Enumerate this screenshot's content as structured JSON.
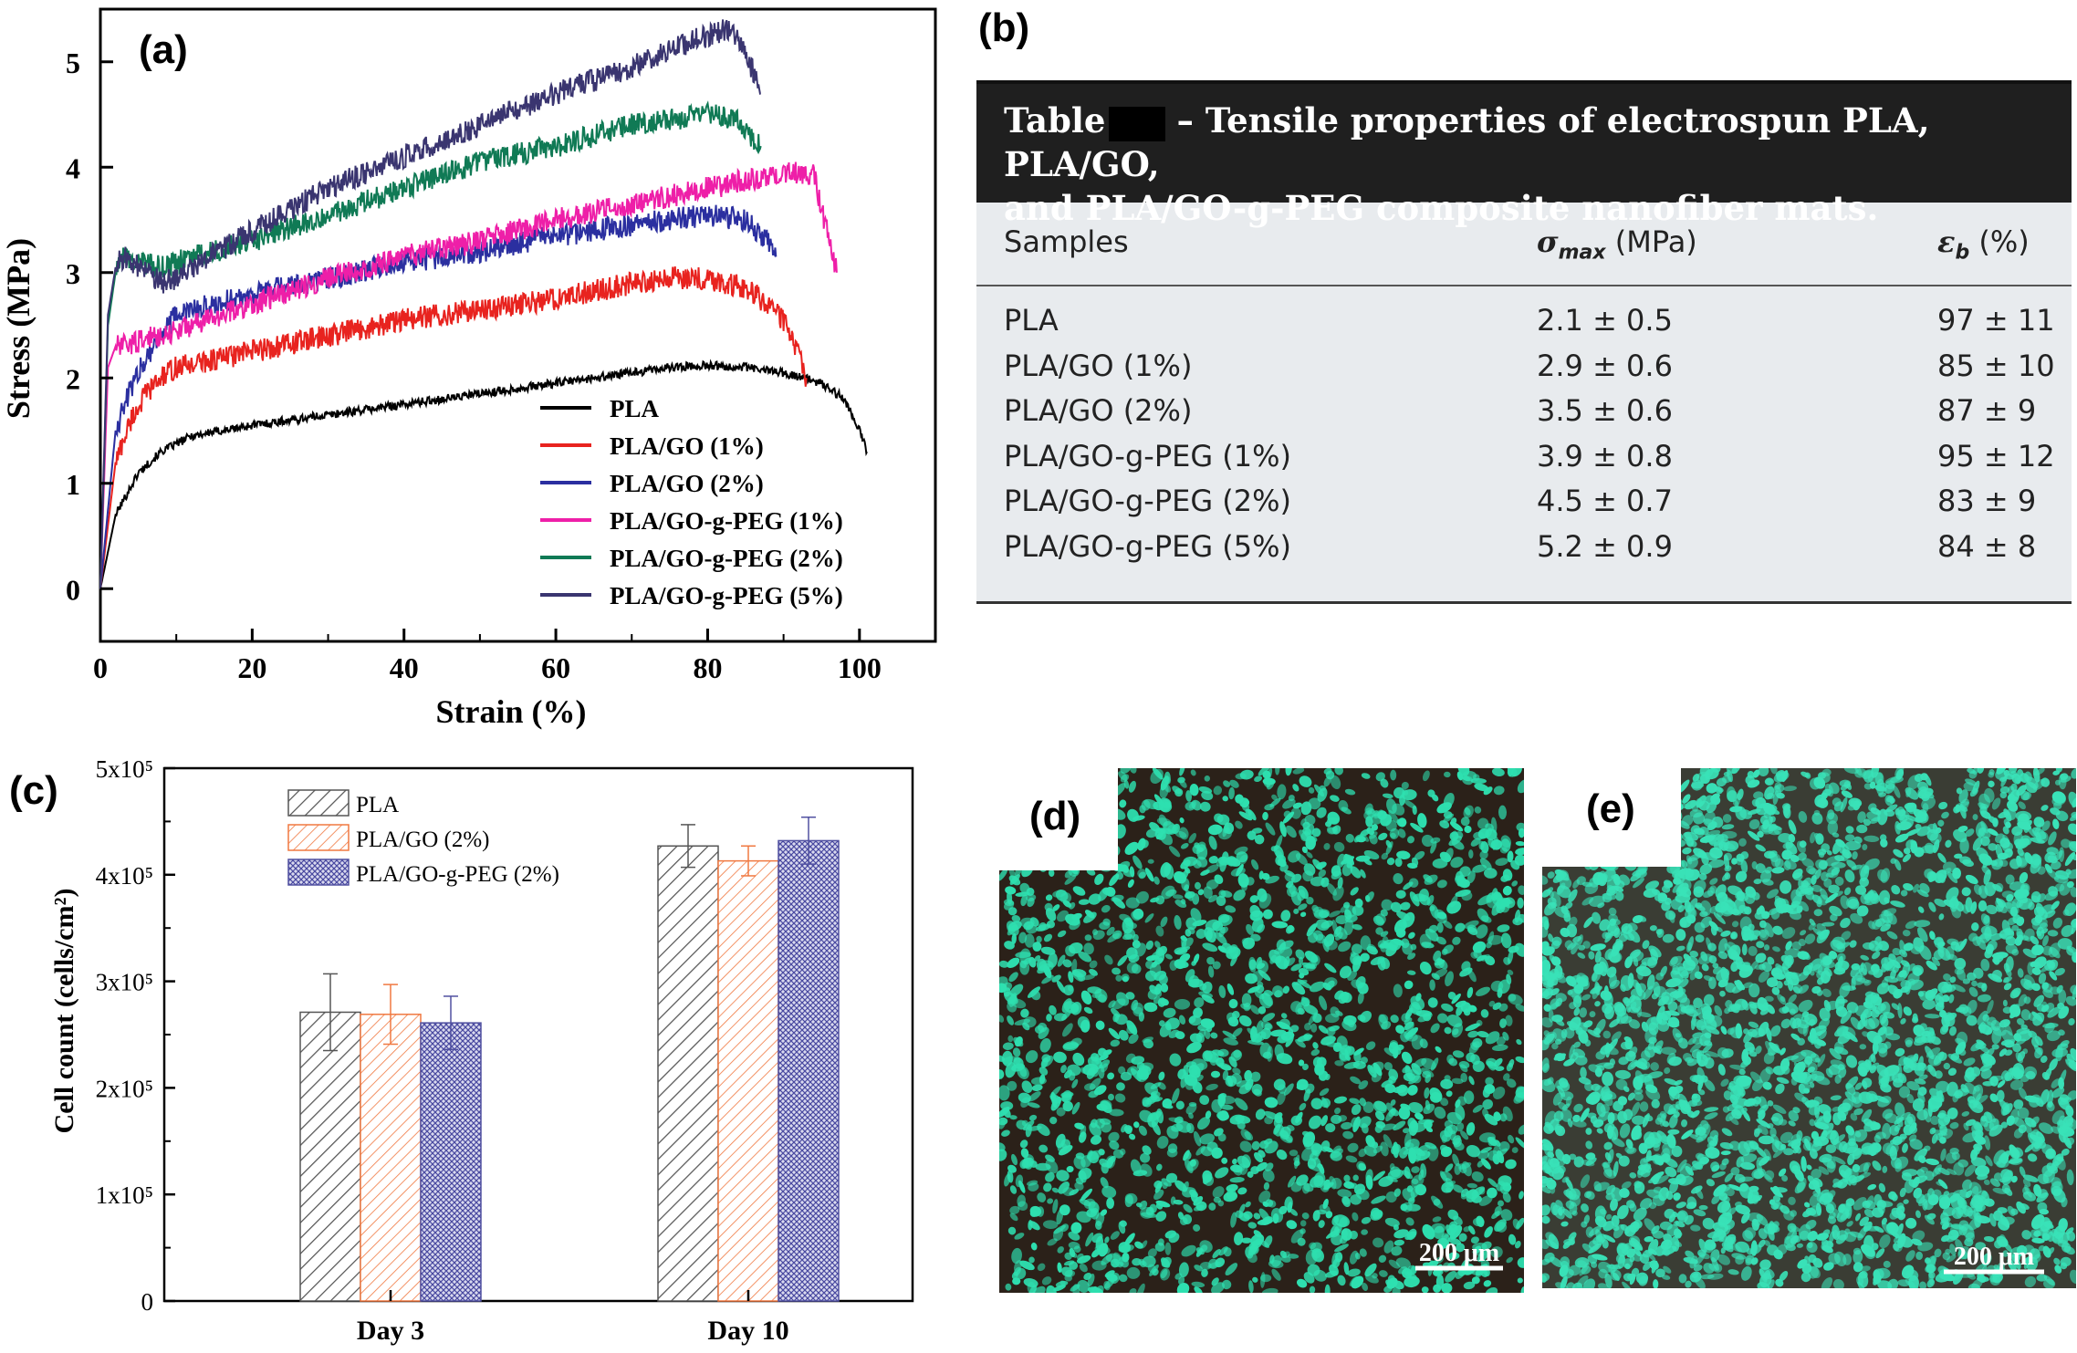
{
  "panels": {
    "a": "(a)",
    "b": "(b)",
    "c": "(c)",
    "d": "(d)",
    "e": "(e)"
  },
  "chart_data": [
    {
      "type": "line",
      "title": "",
      "xlabel": "Strain (%)",
      "ylabel": "Stress (MPa)",
      "xlim": [
        0,
        110
      ],
      "ylim": [
        -0.5,
        5.5
      ],
      "xticks": [
        "0",
        "20",
        "40",
        "60",
        "80",
        "100"
      ],
      "yticks": [
        "0",
        "1",
        "2",
        "3",
        "4",
        "5"
      ],
      "legend_position": "bottom-right",
      "series": [
        {
          "name": "PLA",
          "color": "#000000",
          "x": [
            0,
            2,
            5,
            8,
            12,
            20,
            30,
            40,
            50,
            60,
            70,
            75,
            80,
            85,
            90,
            95,
            98,
            100,
            101
          ],
          "y": [
            0,
            0.7,
            1.1,
            1.3,
            1.45,
            1.55,
            1.65,
            1.75,
            1.85,
            1.95,
            2.05,
            2.1,
            2.12,
            2.1,
            2.05,
            1.95,
            1.8,
            1.5,
            1.3
          ]
        },
        {
          "name": "PLA/GO (1%)",
          "color": "#e8231f",
          "x": [
            0,
            2,
            4,
            6,
            8,
            10,
            20,
            30,
            40,
            50,
            60,
            70,
            75,
            80,
            85,
            88,
            90,
            91,
            92,
            93
          ],
          "y": [
            0,
            1.2,
            1.6,
            1.85,
            2.0,
            2.1,
            2.25,
            2.4,
            2.55,
            2.65,
            2.75,
            2.9,
            2.95,
            2.95,
            2.85,
            2.7,
            2.55,
            2.4,
            2.2,
            2.0
          ]
        },
        {
          "name": "PLA/GO (2%)",
          "color": "#2b2fa0",
          "x": [
            0,
            2,
            4,
            6,
            8,
            10,
            20,
            30,
            40,
            50,
            60,
            70,
            80,
            85,
            88,
            89
          ],
          "y": [
            0,
            1.5,
            1.9,
            2.2,
            2.4,
            2.6,
            2.8,
            2.95,
            3.1,
            3.2,
            3.35,
            3.45,
            3.55,
            3.5,
            3.3,
            3.15
          ]
        },
        {
          "name": "PLA/GO-g-PEG (1%)",
          "color": "#ee1fa8",
          "x": [
            0,
            1,
            2,
            3,
            5,
            10,
            20,
            30,
            40,
            50,
            60,
            70,
            80,
            90,
            94,
            95,
            96,
            97
          ],
          "y": [
            0,
            2.1,
            2.3,
            2.3,
            2.35,
            2.45,
            2.7,
            2.95,
            3.15,
            3.3,
            3.5,
            3.65,
            3.8,
            3.95,
            3.95,
            3.6,
            3.3,
            3.0
          ]
        },
        {
          "name": "PLA/GO-g-PEG (2%)",
          "color": "#107a55",
          "x": [
            0,
            1,
            2,
            3,
            5,
            8,
            10,
            20,
            30,
            40,
            50,
            60,
            70,
            80,
            84,
            85,
            86,
            87
          ],
          "y": [
            0,
            2.5,
            3.0,
            3.15,
            3.1,
            3.05,
            3.1,
            3.3,
            3.55,
            3.8,
            4.05,
            4.2,
            4.4,
            4.5,
            4.45,
            4.35,
            4.25,
            4.2
          ]
        },
        {
          "name": "PLA/GO-g-PEG (5%)",
          "color": "#3a3570",
          "x": [
            0,
            1,
            2,
            3,
            5,
            8,
            10,
            20,
            30,
            40,
            50,
            60,
            70,
            78,
            82,
            84,
            85,
            86,
            87
          ],
          "y": [
            0,
            2.6,
            3.05,
            3.15,
            3.05,
            2.9,
            2.95,
            3.4,
            3.8,
            4.1,
            4.4,
            4.7,
            4.95,
            5.2,
            5.3,
            5.25,
            5.1,
            4.9,
            4.7
          ]
        }
      ]
    },
    {
      "type": "bar",
      "title": "",
      "xlabel": "",
      "ylabel": "Cell count (cells/cm²)",
      "ylim": [
        0,
        500000
      ],
      "yticks": [
        "0",
        "1x10⁵",
        "2x10⁵",
        "3x10⁵",
        "4x10⁵",
        "5x10⁵"
      ],
      "categories": [
        "Day 3",
        "Day 10"
      ],
      "legend_position": "top-left",
      "series": [
        {
          "name": "PLA",
          "color": "#555555",
          "values": [
            271000,
            427000
          ],
          "errors": [
            36000,
            20000
          ]
        },
        {
          "name": "PLA/GO (2%)",
          "color": "#f07840",
          "values": [
            269000,
            413000
          ],
          "errors": [
            28000,
            14000
          ]
        },
        {
          "name": "PLA/GO-g-PEG (2%)",
          "color": "#5050a0",
          "values": [
            261000,
            432000
          ],
          "errors": [
            25000,
            22000
          ]
        }
      ]
    }
  ],
  "table": {
    "caption_prefix": "Table",
    "caption_rest": "– Tensile properties of electrospun PLA, PLA/GO,",
    "caption_line2": "and PLA/GO-g-PEG composite nanofiber mats.",
    "columns": [
      "Samples",
      "σmax (MPa)",
      "εb (%)"
    ],
    "col2_symbol": "σ",
    "col2_sub": "max",
    "col2_unit": " (MPa)",
    "col3_symbol": "ε",
    "col3_sub": "b",
    "col3_unit": " (%)",
    "rows": [
      {
        "sample": "PLA",
        "sigma": "2.1 ± 0.5",
        "eps": "97 ± 11"
      },
      {
        "sample": "PLA/GO (1%)",
        "sigma": "2.9 ± 0.6",
        "eps": "85 ± 10"
      },
      {
        "sample": "PLA/GO (2%)",
        "sigma": "3.5 ± 0.6",
        "eps": "87 ± 9"
      },
      {
        "sample": "PLA/GO-g-PEG (1%)",
        "sigma": "3.9 ± 0.8",
        "eps": "95 ± 12"
      },
      {
        "sample": "PLA/GO-g-PEG (2%)",
        "sigma": "4.5 ± 0.7",
        "eps": "83 ± 9"
      },
      {
        "sample": "PLA/GO-g-PEG (5%)",
        "sigma": "5.2 ± 0.9",
        "eps": "84 ± 8"
      }
    ]
  },
  "micrographs": {
    "d": {
      "scale_label": "200 μm",
      "background": "#2b2119",
      "cell_color": "#2ee0b0"
    },
    "e": {
      "scale_label": "200 μm",
      "background": "#3a3d34",
      "cell_color": "#39e2b8"
    }
  }
}
